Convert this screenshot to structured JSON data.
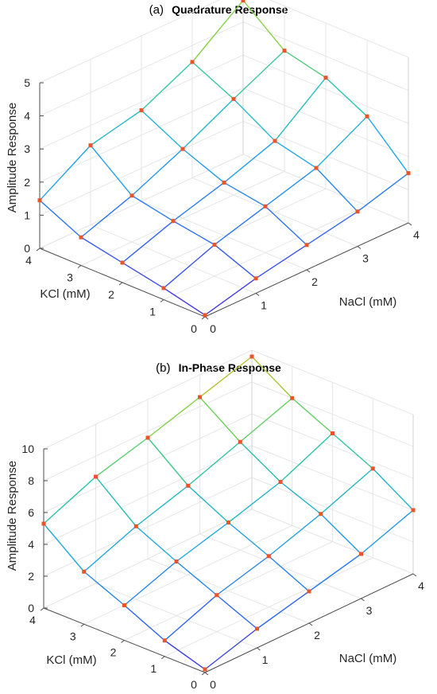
{
  "chart_data": [
    {
      "type": "surface",
      "tag": "(a)",
      "title": "Quadrature Response",
      "xlabel": "NaCl (mM)",
      "ylabel": "KCl (mM)",
      "zlabel": "Amplitude Response",
      "xlim": [
        0,
        4
      ],
      "ylim": [
        0,
        4
      ],
      "zlim": [
        0,
        5
      ],
      "xticks": [
        "0",
        "1",
        "2",
        "3",
        "4"
      ],
      "yticks": [
        "0",
        "1",
        "2",
        "3",
        "4"
      ],
      "zticks": [
        "0",
        "1",
        "2",
        "3",
        "4",
        "5"
      ],
      "grid": true,
      "markers": true,
      "x": [
        0,
        1,
        2,
        3,
        4
      ],
      "y": [
        0,
        1,
        2,
        3,
        4
      ],
      "z": [
        [
          0.05,
          0.45,
          0.75,
          1.05,
          1.5
        ],
        [
          0.35,
          0.95,
          1.4,
          1.85,
          2.7
        ],
        [
          0.6,
          1.15,
          1.6,
          2.15,
          3.35
        ],
        [
          0.85,
          1.4,
          2.1,
          2.9,
          3.65
        ],
        [
          1.45,
          2.4,
          2.75,
          3.5,
          4.65
        ]
      ],
      "colormap": [
        "#4b2bd8",
        "#2f6df0",
        "#22a6e6",
        "#27c6b4",
        "#7ed24e",
        "#c9c42a"
      ],
      "marker_color": "#e8552b"
    },
    {
      "type": "surface",
      "tag": "(b)",
      "title": "In-Phase Response",
      "xlabel": "NaCl (mM)",
      "ylabel": "KCl (mM)",
      "zlabel": "Amplitude Response",
      "xlim": [
        0,
        4
      ],
      "ylim": [
        0,
        4
      ],
      "zlim": [
        0,
        10
      ],
      "xticks": [
        "0",
        "1",
        "2",
        "3",
        "4"
      ],
      "yticks": [
        "0",
        "1",
        "2",
        "3",
        "4"
      ],
      "zticks": [
        "0",
        "2",
        "4",
        "6",
        "8",
        "10"
      ],
      "grid": true,
      "markers": true,
      "x": [
        0,
        1,
        2,
        3,
        4
      ],
      "y": [
        0,
        1,
        2,
        3,
        4
      ],
      "z": [
        [
          0.2,
          1.2,
          2.0,
          2.8,
          4.0
        ],
        [
          1.0,
          2.3,
          3.2,
          4.3,
          5.6
        ],
        [
          2.2,
          3.4,
          4.3,
          5.3,
          6.8
        ],
        [
          3.3,
          4.6,
          5.6,
          6.8,
          8.0
        ],
        [
          5.3,
          6.7,
          7.6,
          8.6,
          9.6
        ]
      ],
      "colormap": [
        "#3f2fd0",
        "#2a72ee",
        "#1fa8de",
        "#27c3a8",
        "#7cd24a",
        "#e6b41e"
      ],
      "marker_color": "#e8552b"
    }
  ]
}
